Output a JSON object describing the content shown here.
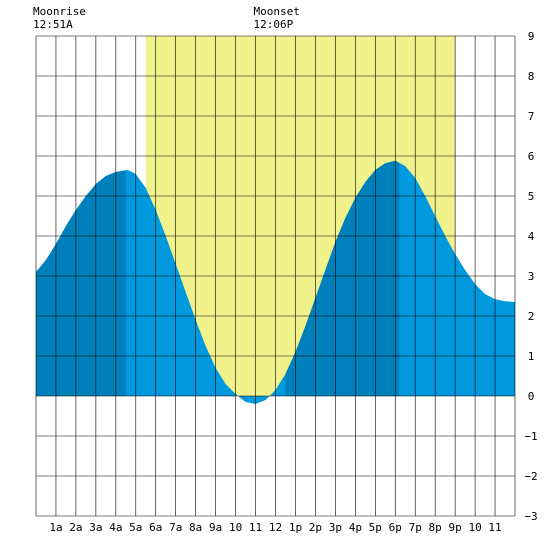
{
  "moon": {
    "rise_label": "Moonrise",
    "rise_time": "12:51A",
    "set_label": "Moonset",
    "set_time": "12:06P"
  },
  "chart_data": {
    "type": "area",
    "title": "",
    "xlabel": "",
    "ylabel": "",
    "x_range_hours": [
      0,
      24
    ],
    "ylim": [
      -3,
      9
    ],
    "y_ticks": [
      "9",
      "8",
      "7",
      "6",
      "5",
      "4",
      "3",
      "2",
      "1",
      "0",
      "−1",
      "−2",
      "−3"
    ],
    "x_tick_labels": [
      "1a",
      "2a",
      "3a",
      "4a",
      "5a",
      "6a",
      "7a",
      "8a",
      "9a",
      "10",
      "11",
      "12",
      "1p",
      "2p",
      "3p",
      "4p",
      "5p",
      "6p",
      "7p",
      "8p",
      "9p",
      "10",
      "11"
    ],
    "daylight_hours": [
      5.5,
      21.0
    ],
    "moonrise_hour": 0.85,
    "moonset_hour": 12.1,
    "grid": true,
    "colors": {
      "daylight": "#f2f28c",
      "tide": "#0099dd",
      "tide_dark": "#0080bb",
      "grid": "#000000"
    },
    "tide_series": [
      {
        "hour": 0.0,
        "height": 3.1
      },
      {
        "hour": 0.5,
        "height": 3.4
      },
      {
        "hour": 1.0,
        "height": 3.8
      },
      {
        "hour": 1.5,
        "height": 4.25
      },
      {
        "hour": 2.0,
        "height": 4.65
      },
      {
        "hour": 2.5,
        "height": 5.0
      },
      {
        "hour": 3.0,
        "height": 5.3
      },
      {
        "hour": 3.5,
        "height": 5.5
      },
      {
        "hour": 4.0,
        "height": 5.6
      },
      {
        "hour": 4.6,
        "height": 5.65
      },
      {
        "hour": 5.0,
        "height": 5.55
      },
      {
        "hour": 5.5,
        "height": 5.2
      },
      {
        "hour": 6.0,
        "height": 4.65
      },
      {
        "hour": 6.5,
        "height": 4.0
      },
      {
        "hour": 7.0,
        "height": 3.3
      },
      {
        "hour": 7.5,
        "height": 2.6
      },
      {
        "hour": 8.0,
        "height": 1.9
      },
      {
        "hour": 8.5,
        "height": 1.25
      },
      {
        "hour": 9.0,
        "height": 0.7
      },
      {
        "hour": 9.5,
        "height": 0.3
      },
      {
        "hour": 10.0,
        "height": 0.05
      },
      {
        "hour": 10.5,
        "height": -0.15
      },
      {
        "hour": 11.0,
        "height": -0.2
      },
      {
        "hour": 11.5,
        "height": -0.1
      },
      {
        "hour": 12.0,
        "height": 0.15
      },
      {
        "hour": 12.5,
        "height": 0.55
      },
      {
        "hour": 13.0,
        "height": 1.1
      },
      {
        "hour": 13.5,
        "height": 1.75
      },
      {
        "hour": 14.0,
        "height": 2.45
      },
      {
        "hour": 14.5,
        "height": 3.15
      },
      {
        "hour": 15.0,
        "height": 3.85
      },
      {
        "hour": 15.5,
        "height": 4.45
      },
      {
        "hour": 16.0,
        "height": 4.95
      },
      {
        "hour": 16.5,
        "height": 5.35
      },
      {
        "hour": 17.0,
        "height": 5.65
      },
      {
        "hour": 17.5,
        "height": 5.82
      },
      {
        "hour": 18.0,
        "height": 5.88
      },
      {
        "hour": 18.5,
        "height": 5.75
      },
      {
        "hour": 19.0,
        "height": 5.45
      },
      {
        "hour": 19.5,
        "height": 5.0
      },
      {
        "hour": 20.0,
        "height": 4.5
      },
      {
        "hour": 20.5,
        "height": 4.0
      },
      {
        "hour": 21.0,
        "height": 3.55
      },
      {
        "hour": 21.5,
        "height": 3.15
      },
      {
        "hour": 22.0,
        "height": 2.8
      },
      {
        "hour": 22.5,
        "height": 2.55
      },
      {
        "hour": 23.0,
        "height": 2.42
      },
      {
        "hour": 23.5,
        "height": 2.37
      },
      {
        "hour": 24.0,
        "height": 2.35
      }
    ],
    "dark_segments": [
      {
        "from_hour": 0.0,
        "to_hour": 4.5
      },
      {
        "from_hour": 12.5,
        "to_hour": 18.2
      }
    ]
  }
}
